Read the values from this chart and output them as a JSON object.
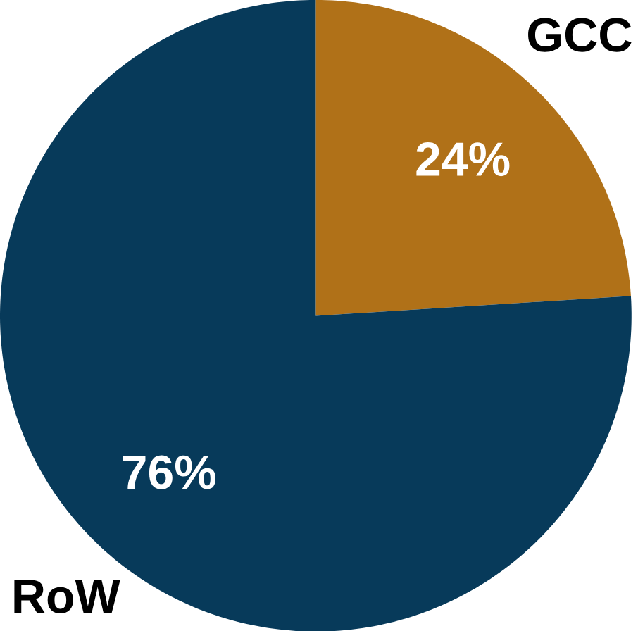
{
  "chart_data": {
    "type": "pie",
    "categories": [
      "GCC",
      "RoW"
    ],
    "values": [
      24,
      76
    ],
    "colors": [
      "#b07118",
      "#073a5a"
    ],
    "value_labels": [
      "24%",
      "76%"
    ]
  }
}
